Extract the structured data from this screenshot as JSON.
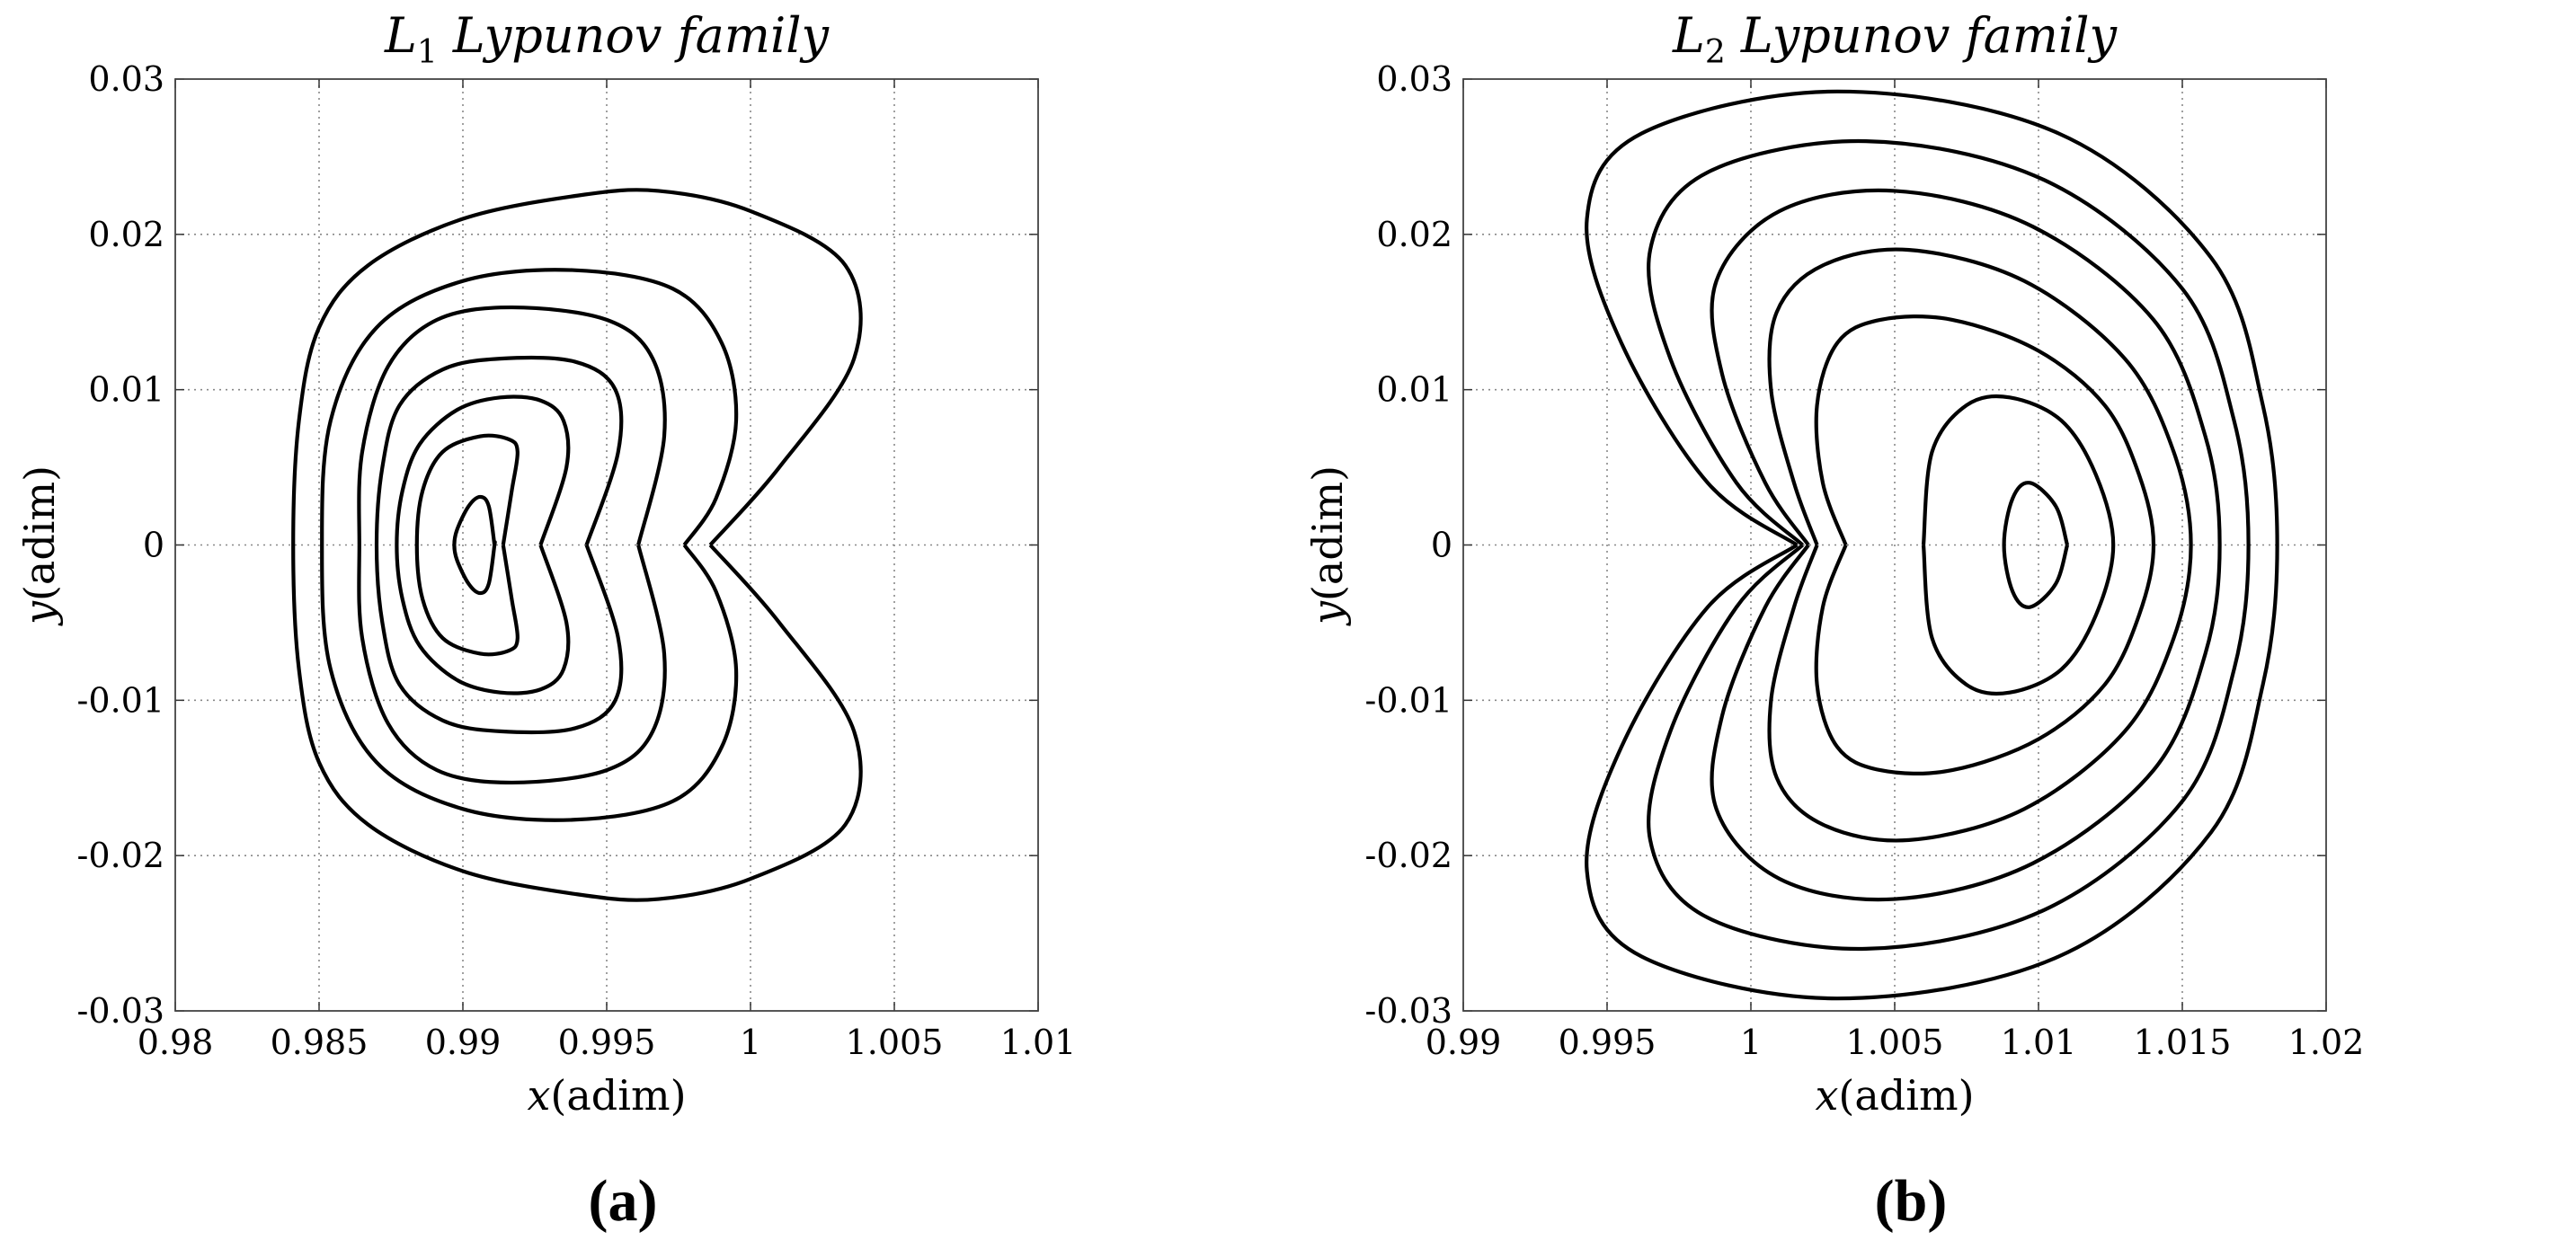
{
  "chart_data": [
    {
      "type": "line",
      "panel_label": "(a)",
      "title_main": "L",
      "title_sub": "1",
      "title_rest": " Lypunov family",
      "xlabel_var": "x",
      "xlabel_unit": "(adim)",
      "ylabel_var": "y",
      "ylabel_unit": "(adim)",
      "xlim": [
        0.98,
        1.01
      ],
      "ylim": [
        -0.03,
        0.03
      ],
      "xticks": [
        0.98,
        0.985,
        0.99,
        0.995,
        1,
        1.005,
        1.01
      ],
      "xtick_labels": [
        "0.98",
        "0.985",
        "0.99",
        "0.995",
        "1",
        "1.005",
        "1.01"
      ],
      "yticks": [
        0.03,
        0.02,
        0.01,
        0,
        -0.01,
        -0.02,
        -0.03
      ],
      "ytick_labels": [
        "0.03",
        "0.02",
        "0.01",
        "0",
        "-0.01",
        "-0.02",
        "-0.03"
      ],
      "grid": true,
      "line_color": "#000000",
      "series": [
        {
          "x": [
            0.9911,
            0.9909,
            0.9906,
            0.9902,
            0.9898,
            0.9897,
            0.9898,
            0.9902,
            0.9906,
            0.9909,
            0.9911,
            0.9911
          ]
        },
        {
          "x": [
            0.9914,
            0.9917,
            0.9919,
            0.9916,
            0.9906,
            0.9893,
            0.9886,
            0.9884,
            0.9886,
            0.9893,
            0.9906,
            0.9916,
            0.9919,
            0.9917,
            0.9914
          ]
        },
        {
          "x": [
            0.9927,
            0.9936,
            0.9935,
            0.9927,
            0.9913,
            0.9898,
            0.9885,
            0.9879,
            0.9877,
            0.9879,
            0.9885,
            0.9898,
            0.9913,
            0.9927,
            0.9935,
            0.9936,
            0.9927
          ]
        },
        {
          "x": [
            0.9943,
            0.9954,
            0.9953,
            0.9939,
            0.9913,
            0.9893,
            0.9878,
            0.9872,
            0.987,
            0.9872,
            0.9878,
            0.9893,
            0.9913,
            0.9939,
            0.9953,
            0.9954,
            0.9943
          ]
        },
        {
          "x": [
            0.9961,
            0.997,
            0.9966,
            0.995,
            0.9917,
            0.9891,
            0.9874,
            0.9865,
            0.9864,
            0.9865,
            0.9874,
            0.9891,
            0.9917,
            0.995,
            0.9966,
            0.997,
            0.9961
          ]
        },
        {
          "x": [
            0.9977,
            0.9988,
            0.9995,
            0.999,
            0.9973,
            0.9938,
            0.99,
            0.987,
            0.9854,
            0.9851,
            0.9854,
            0.987,
            0.99,
            0.9938,
            0.9973,
            0.999,
            0.9995,
            0.9988,
            0.9977
          ]
        },
        {
          "x": [
            0.9986,
            1.001,
            1.0036,
            1.0033,
            1.0,
            0.9968,
            0.994,
            0.99,
            0.9867,
            0.985,
            0.9843,
            0.9841,
            0.9843,
            0.985,
            0.9867,
            0.99,
            0.994,
            0.9968,
            1.0,
            1.0033,
            1.0036,
            1.001,
            0.9986
          ]
        }
      ],
      "series_y": [
        [
          0.0,
          0.0025,
          0.0031,
          0.0025,
          0.001,
          0.0,
          -0.001,
          -0.0025,
          -0.0031,
          -0.0025,
          -0.0,
          0.0
        ],
        [
          0.0,
          0.0035,
          0.006,
          0.0068,
          0.007,
          0.006,
          0.0035,
          0.0,
          -0.0035,
          -0.006,
          -0.007,
          -0.0068,
          -0.006,
          -0.0035,
          0.0
        ],
        [
          0.0,
          0.005,
          0.008,
          0.0093,
          0.0095,
          0.0087,
          0.0065,
          0.0035,
          0.0,
          -0.0035,
          -0.0065,
          -0.0087,
          -0.0095,
          -0.0093,
          -0.008,
          -0.005,
          0.0
        ],
        [
          0.0,
          0.006,
          0.01,
          0.0118,
          0.012,
          0.0113,
          0.009,
          0.005,
          0.0,
          -0.005,
          -0.009,
          -0.0113,
          -0.012,
          -0.0118,
          -0.01,
          -0.006,
          0.0
        ],
        [
          0.0,
          0.007,
          0.012,
          0.0145,
          0.0153,
          0.0145,
          0.0115,
          0.006,
          0.0,
          -0.006,
          -0.0115,
          -0.0145,
          -0.0153,
          -0.0145,
          -0.012,
          -0.007,
          0.0
        ],
        [
          0.0,
          0.003,
          0.008,
          0.013,
          0.0165,
          0.0177,
          0.017,
          0.014,
          0.008,
          0.0,
          -0.008,
          -0.014,
          -0.017,
          -0.0177,
          -0.0165,
          -0.013,
          -0.008,
          -0.003,
          0.0
        ],
        [
          0.0,
          0.005,
          0.012,
          0.018,
          0.0215,
          0.0228,
          0.0225,
          0.021,
          0.018,
          0.014,
          0.008,
          0.0,
          -0.008,
          -0.014,
          -0.018,
          -0.021,
          -0.0225,
          -0.0228,
          -0.0215,
          -0.018,
          -0.012,
          -0.005,
          0.0
        ]
      ]
    },
    {
      "type": "line",
      "panel_label": "(b)",
      "title_main": "L",
      "title_sub": "2",
      "title_rest": " Lypunov family",
      "xlabel_var": "x",
      "xlabel_unit": "(adim)",
      "ylabel_var": "y",
      "ylabel_unit": "(adim)",
      "xlim": [
        0.99,
        1.02
      ],
      "ylim": [
        -0.03,
        0.03
      ],
      "xticks": [
        0.99,
        0.995,
        1,
        1.005,
        1.01,
        1.015,
        1.02
      ],
      "xtick_labels": [
        "0.99",
        "0.995",
        "1",
        "1.005",
        "1.01",
        "1.015",
        "1.02"
      ],
      "yticks": [
        0.03,
        0.02,
        0.01,
        0,
        -0.01,
        -0.02,
        -0.03
      ],
      "ytick_labels": [
        "0.03",
        "0.02",
        "0.01",
        "0",
        "-0.01",
        "-0.02",
        "-0.03"
      ],
      "grid": true,
      "line_color": "#000000",
      "series": [
        {
          "x": [
            1.011,
            1.0106,
            1.0097,
            1.0091,
            1.0088,
            1.0091,
            1.0097,
            1.0106,
            1.011
          ]
        },
        {
          "x": [
            1.006,
            1.0063,
            1.0075,
            1.009,
            1.0108,
            1.012,
            1.0126,
            1.012,
            1.0108,
            1.009,
            1.0075,
            1.0063,
            1.006
          ]
        },
        {
          "x": [
            1.0033,
            1.0025,
            1.0023,
            1.003,
            1.0045,
            1.007,
            1.01,
            1.0123,
            1.0135,
            1.014,
            1.0135,
            1.0123,
            1.01,
            1.007,
            1.0045,
            1.003,
            1.0023,
            1.0025,
            1.0033
          ]
        },
        {
          "x": [
            1.0023,
            1.0015,
            1.0007,
            1.0009,
            1.0025,
            1.0055,
            1.0095,
            1.013,
            1.0147,
            1.0153,
            1.0147,
            1.013,
            1.0095,
            1.0055,
            1.0025,
            1.0009,
            1.0007,
            1.0015,
            1.0023
          ]
        },
        {
          "x": [
            1.002,
            1.0005,
            0.999,
            0.9988,
            1.001,
            1.005,
            1.0098,
            1.014,
            1.0158,
            1.0163,
            1.0158,
            1.014,
            1.0098,
            1.005,
            1.001,
            0.9988,
            0.999,
            1.0005,
            1.002
          ]
        },
        {
          "x": [
            1.0018,
            0.9995,
            0.9972,
            0.9965,
            0.9985,
            1.004,
            1.0102,
            1.015,
            1.0168,
            1.0173,
            1.0168,
            1.015,
            1.0102,
            1.004,
            0.9985,
            0.9965,
            0.9972,
            0.9995,
            1.0018
          ]
        },
        {
          "x": [
            1.0016,
            0.9985,
            0.9955,
            0.9943,
            0.9962,
            1.003,
            1.0107,
            1.016,
            1.0178,
            1.0183,
            1.0178,
            1.016,
            1.0107,
            1.003,
            0.9962,
            0.9943,
            0.9955,
            0.9985,
            1.0016
          ]
        }
      ],
      "series_y": [
        [
          0.0,
          0.0025,
          0.004,
          0.003,
          0.0,
          -0.003,
          -0.004,
          -0.0025,
          0.0
        ],
        [
          0.0,
          0.006,
          0.009,
          0.0095,
          0.008,
          0.0045,
          0.0,
          -0.0045,
          -0.008,
          -0.0095,
          -0.009,
          -0.006,
          0.0
        ],
        [
          0.0,
          0.004,
          0.009,
          0.013,
          0.0145,
          0.0145,
          0.0125,
          0.009,
          0.0045,
          0.0,
          -0.0045,
          -0.009,
          -0.0125,
          -0.0145,
          -0.0145,
          -0.013,
          -0.009,
          -0.004,
          0.0
        ],
        [
          0.0,
          0.004,
          0.01,
          0.015,
          0.018,
          0.019,
          0.017,
          0.012,
          0.006,
          0.0,
          -0.006,
          -0.012,
          -0.017,
          -0.019,
          -0.018,
          -0.015,
          -0.01,
          -0.004,
          0.0
        ],
        [
          0.0,
          0.004,
          0.011,
          0.017,
          0.0215,
          0.0228,
          0.0205,
          0.0145,
          0.007,
          0.0,
          -0.007,
          -0.0145,
          -0.0205,
          -0.0228,
          -0.0215,
          -0.017,
          -0.011,
          -0.004,
          0.0
        ],
        [
          0.0,
          0.004,
          0.012,
          0.019,
          0.024,
          0.026,
          0.0235,
          0.0165,
          0.008,
          0.0,
          -0.008,
          -0.0165,
          -0.0235,
          -0.026,
          -0.024,
          -0.019,
          -0.012,
          -0.004,
          0.0
        ],
        [
          0.0,
          0.004,
          0.013,
          0.021,
          0.0265,
          0.0292,
          0.0265,
          0.0185,
          0.009,
          0.0,
          -0.009,
          -0.0185,
          -0.0265,
          -0.0292,
          -0.0265,
          -0.021,
          -0.013,
          -0.004,
          0.0
        ]
      ]
    }
  ]
}
